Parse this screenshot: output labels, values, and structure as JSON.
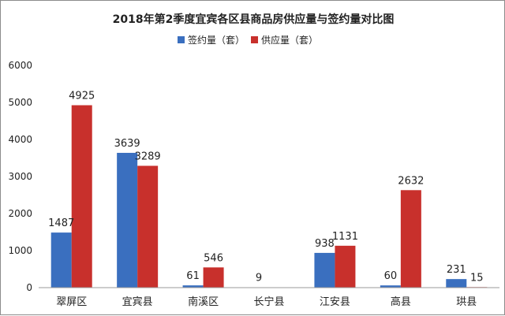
{
  "chart_data": {
    "type": "bar",
    "title": "2018年第2季度宜宾各区县商品房供应量与签约量对比图",
    "categories": [
      "翠屏区",
      "宜宾县",
      "南溪区",
      "长宁县",
      "江安县",
      "高县",
      "珙县"
    ],
    "series": [
      {
        "name": "签约量（套）",
        "color": "#3a6fbf",
        "values": [
          1487,
          3639,
          61,
          9,
          938,
          60,
          231
        ],
        "labels": [
          "1487",
          "3639",
          "61",
          "9",
          "938",
          "60",
          "231"
        ]
      },
      {
        "name": "供应量（套）",
        "color": "#c8302c",
        "values": [
          4925,
          3289,
          546,
          0,
          1131,
          2632,
          15
        ],
        "labels": [
          "4925",
          "3289",
          "546",
          "",
          "1131",
          "2632",
          "15"
        ]
      }
    ],
    "ylim": [
      0,
      6000
    ],
    "yticks": [
      "0",
      "1000",
      "2000",
      "3000",
      "4000",
      "5000",
      "6000"
    ],
    "grid": false,
    "legend_position": "top"
  }
}
